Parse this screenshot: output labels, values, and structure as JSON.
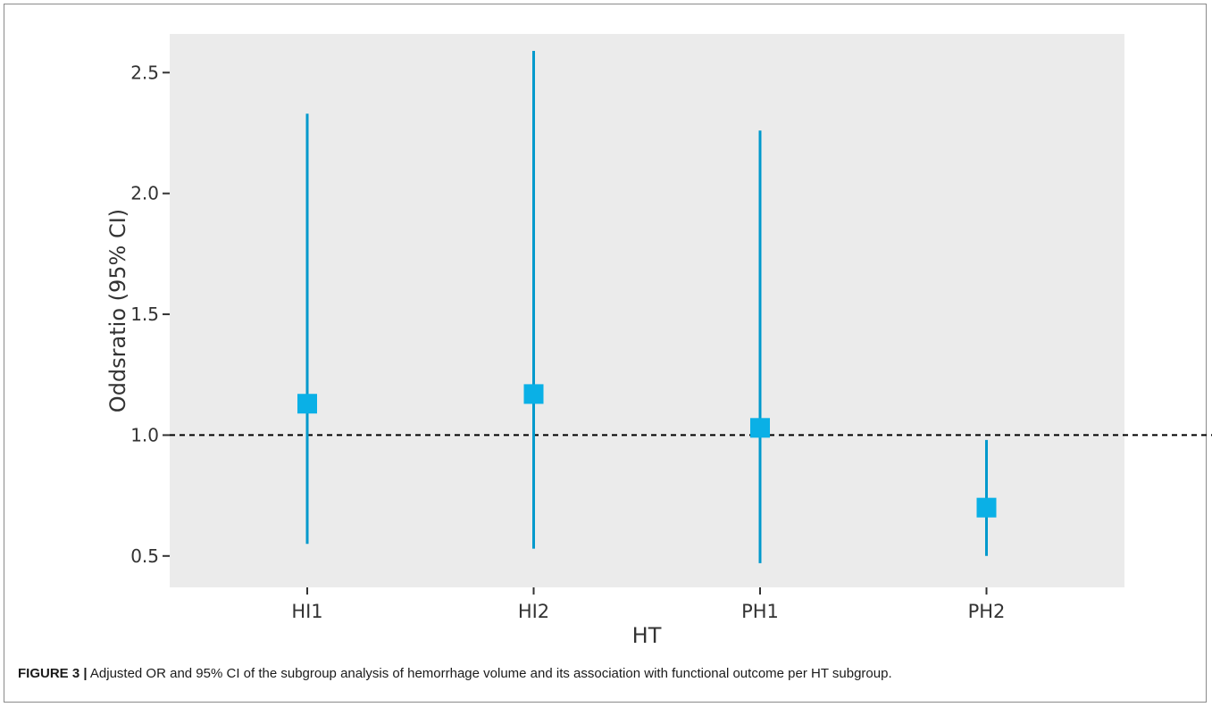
{
  "figure": {
    "label": "FIGURE 3 |",
    "caption": "Adjusted OR and 95% CI of the subgroup analysis of hemorrhage volume and its association with functional outcome per HT subgroup."
  },
  "chart_data": {
    "type": "scatter",
    "subtype": "forest-plot-with-error-bars",
    "title": "",
    "xlabel": "HT",
    "ylabel": "Oddsratio (95% CI)",
    "categories": [
      "HI1",
      "HI2",
      "PH1",
      "PH2"
    ],
    "series": [
      {
        "estimate": [
          1.13,
          1.17,
          1.03,
          0.7
        ],
        "lower": [
          0.55,
          0.53,
          0.47,
          0.5
        ],
        "upper": [
          2.33,
          2.59,
          2.26,
          0.98
        ]
      }
    ],
    "reference_line": 1.0,
    "ylim": [
      0.37,
      2.66
    ],
    "yticks": [
      0.5,
      1.0,
      1.5,
      2.0,
      2.5
    ],
    "ytick_labels": [
      "0.5",
      "1.0",
      "1.5",
      "2.0",
      "2.5"
    ],
    "grid": false,
    "colors": {
      "point": "#0ab0e6",
      "errorbar": "#0099cc",
      "panel_background": "#ebebeb",
      "reference_line": "#000000"
    }
  }
}
